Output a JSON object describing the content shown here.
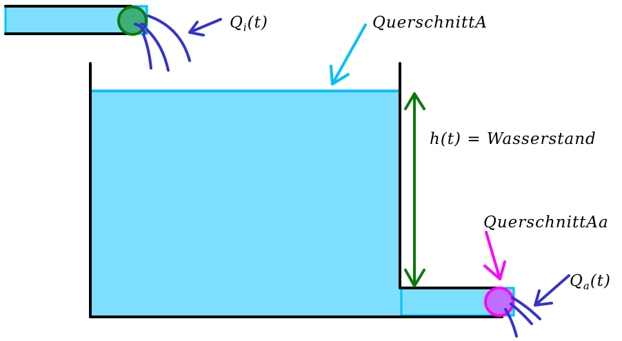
{
  "labels": {
    "inflow": "Q",
    "inflow_sub": "i",
    "inflow_arg": "(t)",
    "cross_section": "QuerschnittA",
    "water_level": "h(t) = Wasserstand",
    "outlet_cross_section": "QuerschnittAa",
    "outflow": "Q",
    "outflow_sub": "a",
    "outflow_arg": "(t)"
  },
  "colors": {
    "water": "#7fdfff",
    "water_surface": "#00bfff",
    "wall": "#000000",
    "inflow_valve": "#3daf7a",
    "inflow_valve_ring": "#0a7a0a",
    "outlet_valve": "#bf6fff",
    "outlet_valve_ring": "#ff00ff",
    "flow_streaks": "#3333cc",
    "level_arrow": "#0a7a0a"
  }
}
